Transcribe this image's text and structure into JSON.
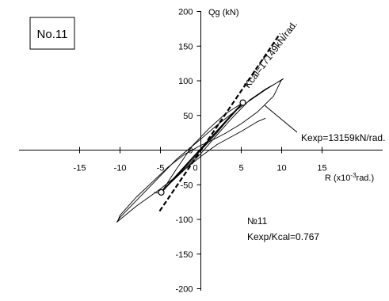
{
  "chart_data": {
    "type": "line",
    "badge": "No.11",
    "xlabel_prefix": "R (x10",
    "xlabel_exp": "-3",
    "xlabel_suffix": "rad.)",
    "ylabel": "Qg (kN)",
    "xlim": [
      -15,
      15
    ],
    "ylim": [
      -200,
      200
    ],
    "x_ticks": [
      -15,
      -10,
      -5,
      0,
      5,
      10,
      15
    ],
    "y_ticks": [
      -200,
      -150,
      -100,
      -50,
      0,
      50,
      100,
      150,
      200
    ],
    "kcal_label": "Kcal=17149kN/rad.",
    "kexp_label": "Kexp=13159kN/rad.",
    "specimen_label": "№11",
    "ratio_label": "Kexp/Kcal=0.767",
    "kcal_line": [
      [
        -5.1,
        -88
      ],
      [
        9.8,
        168
      ]
    ],
    "kexp_points": [
      [
        5.2,
        68.5
      ],
      [
        -4.9,
        -61
      ]
    ],
    "series": [
      {
        "style": "hysteresis",
        "x": [
          0,
          1,
          2,
          3,
          4,
          5,
          5.2,
          3,
          1,
          -1,
          -3,
          -4.9,
          -3,
          -1,
          0
        ],
        "y": [
          0,
          12,
          25,
          39,
          52,
          65,
          68.5,
          52,
          31,
          7,
          -27,
          -61,
          -38,
          -14,
          0
        ]
      },
      {
        "style": "hysteresis",
        "x": [
          -5.8,
          -5.2,
          -4,
          -2,
          0,
          2,
          4,
          5,
          5.5
        ],
        "y": [
          -61,
          -62,
          -50,
          -28,
          -5,
          22,
          48,
          60,
          66
        ]
      },
      {
        "style": "hysteresis",
        "x": [
          5.5,
          6,
          8,
          10,
          10.2,
          8,
          5,
          2,
          0,
          -3,
          -6,
          -8,
          -10,
          -10.4,
          -8,
          -5,
          -2,
          0,
          2,
          5,
          7,
          8
        ],
        "y": [
          66,
          72,
          88,
          101,
          103,
          87,
          63,
          36,
          16,
          -13,
          -49,
          -73,
          -97,
          -104,
          -81,
          -56,
          -28,
          -9,
          8,
          27,
          41,
          46
        ]
      },
      {
        "style": "hysteresis",
        "x": [
          10,
          9,
          7,
          5,
          3,
          1,
          0,
          -2,
          -4,
          -6,
          -8,
          -10,
          -10.3
        ],
        "y": [
          102,
          78,
          55,
          38,
          24,
          12,
          7,
          -6,
          -24,
          -46,
          -68,
          -94,
          -103
        ]
      }
    ]
  }
}
